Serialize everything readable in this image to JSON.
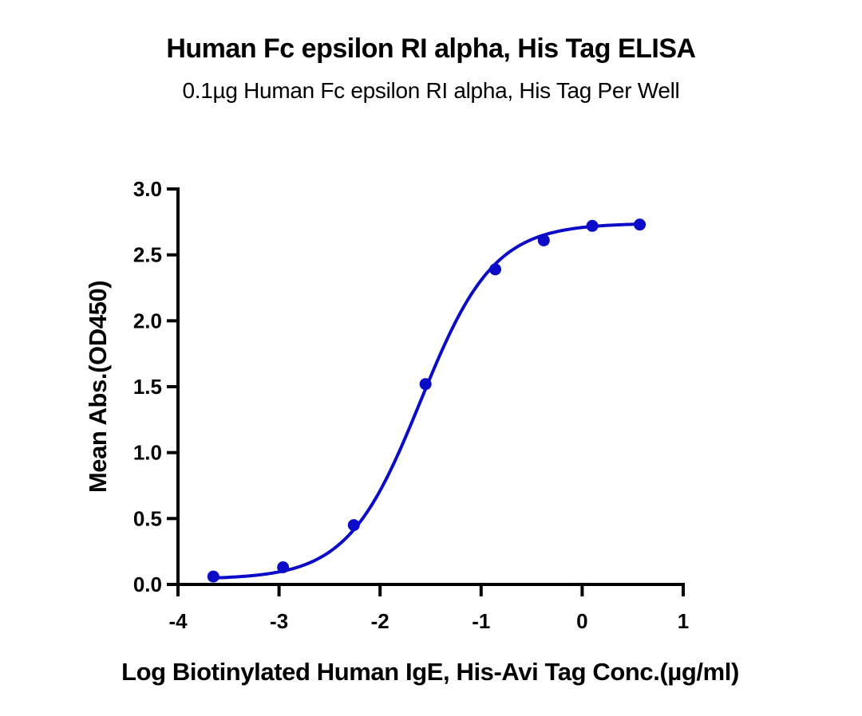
{
  "header": {
    "title": "Human Fc epsilon RI alpha, His Tag ELISA",
    "subtitle": "0.1µg Human Fc epsilon RI alpha, His Tag Per Well"
  },
  "colors": {
    "series": "#0b0bc8",
    "axis": "#000000",
    "background": "#ffffff"
  },
  "chart_data": {
    "type": "scatter",
    "title": "Human Fc epsilon RI alpha, His Tag ELISA",
    "subtitle": "0.1µg Human Fc epsilon RI alpha, His Tag Per Well",
    "xlabel": "Log Biotinylated Human IgE, His-Avi Tag Conc.(µg/ml)",
    "ylabel": "Mean Abs.(OD450)",
    "xlim": [
      -4,
      1
    ],
    "ylim": [
      0,
      3.0
    ],
    "xticks": [
      -4,
      -3,
      -2,
      -1,
      0,
      1
    ],
    "xtick_labels": [
      "-4",
      "-3",
      "-2",
      "-1",
      "0",
      "1"
    ],
    "yticks": [
      0,
      0.5,
      1.0,
      1.5,
      2.0,
      2.5,
      3.0
    ],
    "ytick_labels": [
      "0.0",
      "0.5",
      "1.0",
      "1.5",
      "2.0",
      "2.5",
      "3.0"
    ],
    "grid": false,
    "legend": null,
    "series": [
      {
        "name": "Mean Abs.(OD450)",
        "x": [
          -3.65,
          -2.96,
          -2.26,
          -1.55,
          -0.86,
          -0.38,
          0.1,
          0.57
        ],
        "y": [
          0.06,
          0.13,
          0.45,
          1.52,
          2.39,
          2.61,
          2.72,
          2.73
        ],
        "marker": "circle",
        "fit": {
          "model": "4PL sigmoidal",
          "bottom": 0.04,
          "top": 2.74,
          "logEC50": -1.6,
          "hill_slope": 1.2,
          "x_range": [
            -3.65,
            0.57
          ]
        }
      }
    ]
  }
}
